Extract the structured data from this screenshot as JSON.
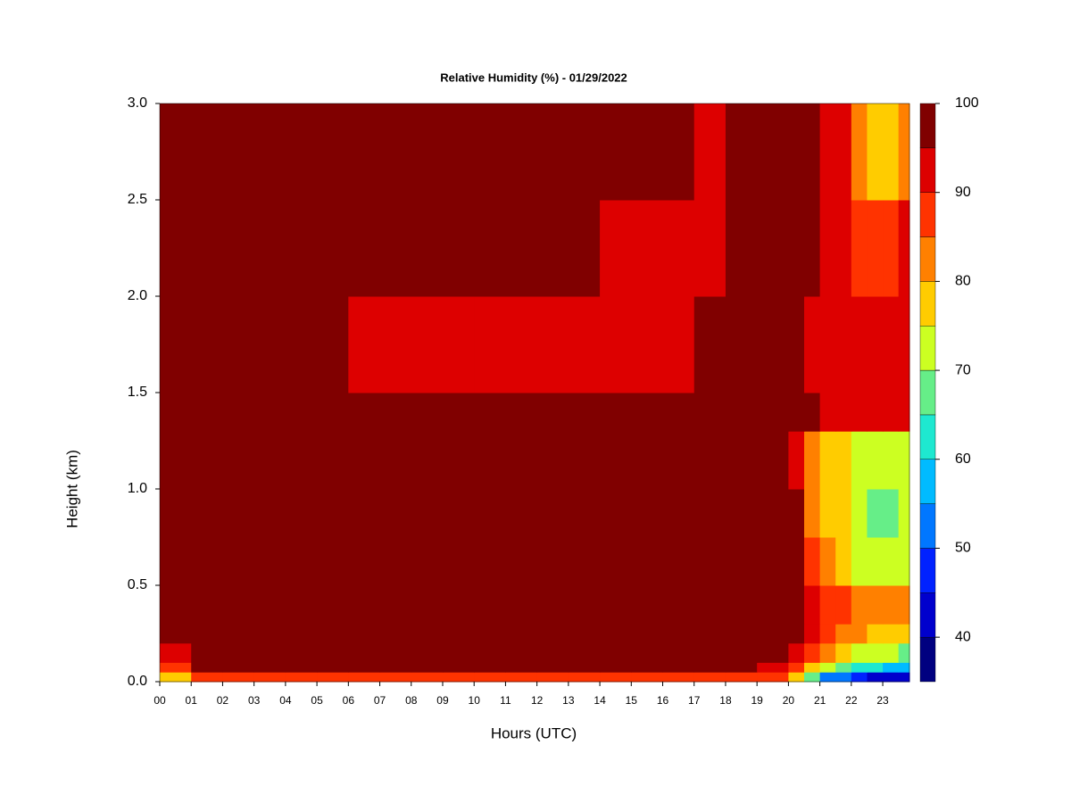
{
  "chart_data": {
    "type": "heatmap",
    "title": "Relative Humidity (%) - 01/29/2022",
    "x_label": "Hours (UTC)",
    "y_label": "Height (km)",
    "xlim": [
      0,
      23.85
    ],
    "ylim": [
      0,
      3
    ],
    "xticks": [
      {
        "value": 0,
        "label": "00"
      },
      {
        "value": 1,
        "label": "01"
      },
      {
        "value": 2,
        "label": "02"
      },
      {
        "value": 3,
        "label": "03"
      },
      {
        "value": 4,
        "label": "04"
      },
      {
        "value": 5,
        "label": "05"
      },
      {
        "value": 6,
        "label": "06"
      },
      {
        "value": 7,
        "label": "07"
      },
      {
        "value": 8,
        "label": "08"
      },
      {
        "value": 9,
        "label": "09"
      },
      10,
      11,
      12,
      13,
      14,
      15,
      16,
      17,
      18,
      19,
      20,
      21,
      22,
      23
    ],
    "yticks": [
      {
        "value": 0,
        "label": "0.0"
      },
      {
        "value": 0.5,
        "label": "0.5"
      },
      {
        "value": 1,
        "label": "1.0"
      },
      {
        "value": 1.5,
        "label": "1.5"
      },
      {
        "value": 2,
        "label": "2.0"
      },
      {
        "value": 2.5,
        "label": "2.5"
      },
      {
        "value": 3,
        "label": "3.0"
      }
    ],
    "x_edges": [
      0,
      1,
      2,
      3,
      4,
      5,
      6,
      7,
      8,
      9,
      10,
      11,
      12,
      13,
      14,
      15,
      16,
      17,
      18,
      19,
      20,
      20.5,
      21,
      21.5,
      22,
      22.5,
      23,
      23.5,
      23.85
    ],
    "y_edges": [
      0,
      0.05,
      0.1,
      0.2,
      0.3,
      0.5,
      0.75,
      1.0,
      1.3,
      1.5,
      2.0,
      2.5,
      3.0
    ],
    "z": [
      [
        80,
        88,
        90,
        90,
        90,
        90,
        90,
        90,
        90,
        90,
        90,
        90,
        90,
        90,
        90,
        90,
        90,
        90,
        90,
        88,
        80,
        70,
        55,
        52,
        48,
        45,
        44,
        42
      ],
      [
        90,
        97,
        97,
        97,
        97,
        97,
        97,
        97,
        97,
        97,
        97,
        97,
        97,
        97,
        97,
        97,
        97,
        97,
        97,
        95,
        88,
        80,
        72,
        68,
        65,
        62,
        60,
        60
      ],
      [
        94,
        97,
        97,
        97,
        97,
        97,
        97,
        97,
        97,
        97,
        97,
        97,
        97,
        97,
        97,
        97,
        97,
        97,
        97,
        97,
        95,
        88,
        82,
        78,
        75,
        72,
        72,
        70
      ],
      [
        97,
        97,
        97,
        97,
        97,
        97,
        97,
        97,
        97,
        97,
        97,
        97,
        97,
        97,
        97,
        97,
        97,
        97,
        97,
        97,
        97,
        92,
        88,
        85,
        82,
        80,
        78,
        78
      ],
      [
        97,
        97,
        97,
        97,
        97,
        97,
        97,
        97,
        97,
        97,
        97,
        97,
        97,
        97,
        97,
        97,
        97,
        97,
        97,
        97,
        97,
        95,
        90,
        88,
        85,
        85,
        83,
        82
      ],
      [
        97,
        97,
        97,
        97,
        97,
        97,
        97,
        97,
        97,
        97,
        97,
        97,
        97,
        97,
        97,
        97,
        97,
        97,
        97,
        97,
        97,
        88,
        82,
        80,
        75,
        72,
        72,
        72
      ],
      [
        97,
        97,
        97,
        97,
        97,
        97,
        97,
        97,
        97,
        97,
        97,
        97,
        97,
        97,
        97,
        97,
        97,
        97,
        97,
        97,
        97,
        85,
        80,
        77,
        72,
        70,
        70,
        72
      ],
      [
        97,
        97,
        97,
        97,
        97,
        97,
        97,
        97,
        97,
        97,
        97,
        97,
        97,
        97,
        97,
        97,
        97,
        97,
        97,
        97,
        93,
        85,
        78,
        76,
        74,
        72,
        72,
        73
      ],
      [
        97,
        97,
        97,
        97,
        97,
        97,
        97,
        97,
        97,
        97,
        97,
        97,
        97,
        97,
        97,
        97,
        97,
        97,
        97,
        97,
        97,
        97,
        93,
        92,
        92,
        93,
        92,
        92
      ],
      [
        97,
        97,
        97,
        97,
        97,
        97,
        95,
        94,
        94,
        95,
        95,
        95,
        94,
        93,
        93,
        95,
        95,
        96,
        97,
        97,
        96,
        95,
        93,
        92,
        91,
        91,
        92,
        92
      ],
      [
        97,
        97,
        97,
        97,
        97,
        97,
        97,
        97,
        97,
        97,
        97,
        97,
        97,
        97,
        95,
        95,
        95,
        95,
        96,
        97,
        97,
        97,
        94,
        92,
        90,
        89,
        90,
        91
      ],
      [
        97,
        97,
        97,
        97,
        96,
        96,
        97,
        97,
        97,
        97,
        97,
        97,
        97,
        97,
        97,
        96,
        96,
        95,
        96,
        97,
        97,
        97,
        93,
        92,
        82,
        78,
        80,
        85
      ]
    ],
    "zlevels": [
      35,
      40,
      45,
      50,
      55,
      60,
      65,
      70,
      75,
      80,
      85,
      90,
      95,
      100
    ],
    "colors": [
      "#000080",
      "#0000cd",
      "#0022ff",
      "#0077ff",
      "#00bbff",
      "#1ee8d0",
      "#66ee88",
      "#ccff22",
      "#ffcc00",
      "#ff8000",
      "#ff3300",
      "#dd0000",
      "#800000"
    ],
    "zticks": [
      40,
      50,
      60,
      70,
      80,
      90,
      100
    ]
  }
}
